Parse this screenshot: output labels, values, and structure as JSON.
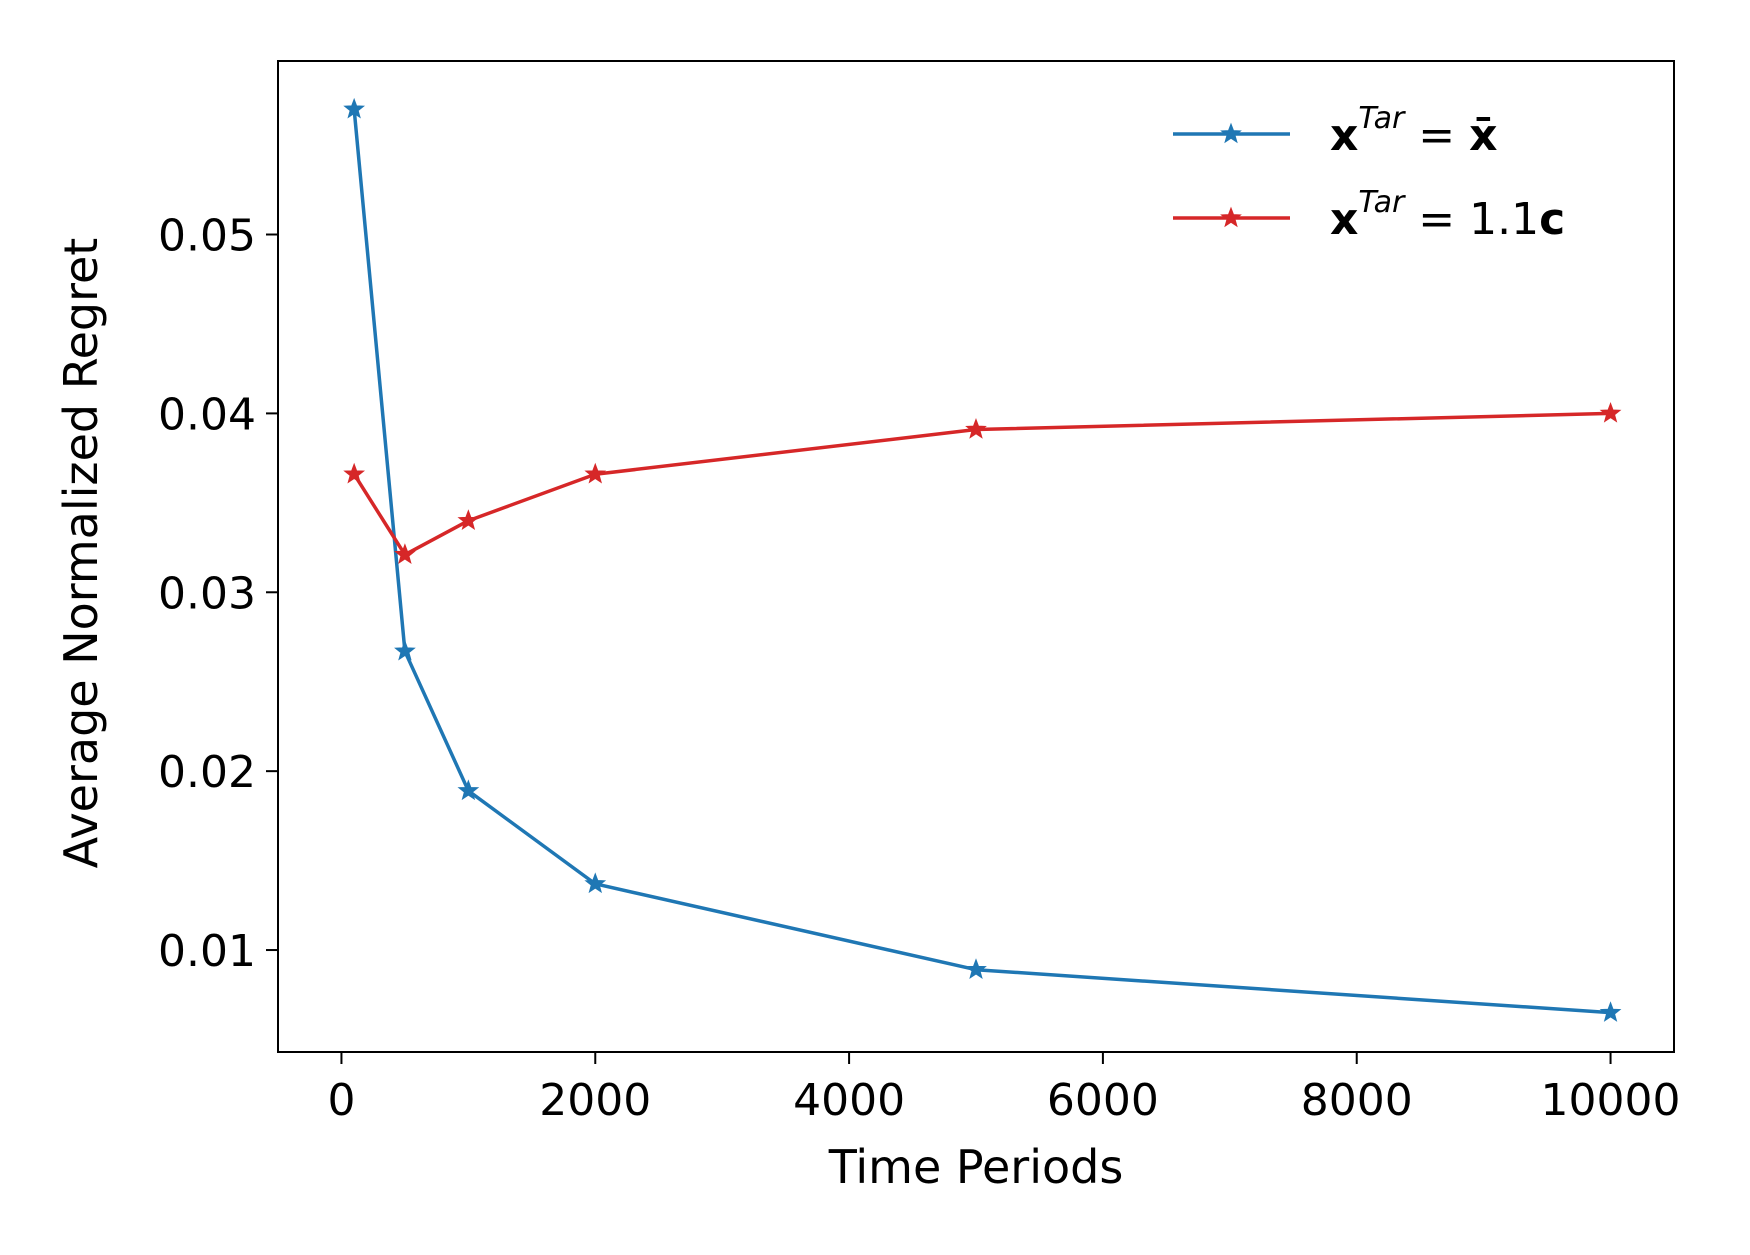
{
  "chart_data": {
    "type": "line",
    "title": "",
    "xlabel": "Time Periods",
    "ylabel": "Average Normalized Regret",
    "xlim": [
      -500,
      10500
    ],
    "ylim": [
      0.0043,
      0.0597
    ],
    "xticks": [
      0,
      2000,
      4000,
      6000,
      8000,
      10000
    ],
    "xtick_labels": [
      "0",
      "2000",
      "4000",
      "6000",
      "8000",
      "10000"
    ],
    "yticks": [
      0.01,
      0.02,
      0.03,
      0.04,
      0.05
    ],
    "ytick_labels": [
      "0.01",
      "0.02",
      "0.03",
      "0.04",
      "0.05"
    ],
    "grid": false,
    "legend_position": "top-right",
    "x": [
      100,
      500,
      1000,
      2000,
      5000,
      10000
    ],
    "series": [
      {
        "name": "x^{Tar} = x̄",
        "color": "#1f77b4",
        "marker": "star",
        "values": [
          0.057,
          0.0267,
          0.0189,
          0.0137,
          0.0089,
          0.0065
        ]
      },
      {
        "name": "x^{Tar} = 1.1c",
        "color": "#d62728",
        "marker": "star",
        "values": [
          0.0366,
          0.0321,
          0.034,
          0.0366,
          0.0391,
          0.04
        ]
      }
    ]
  }
}
